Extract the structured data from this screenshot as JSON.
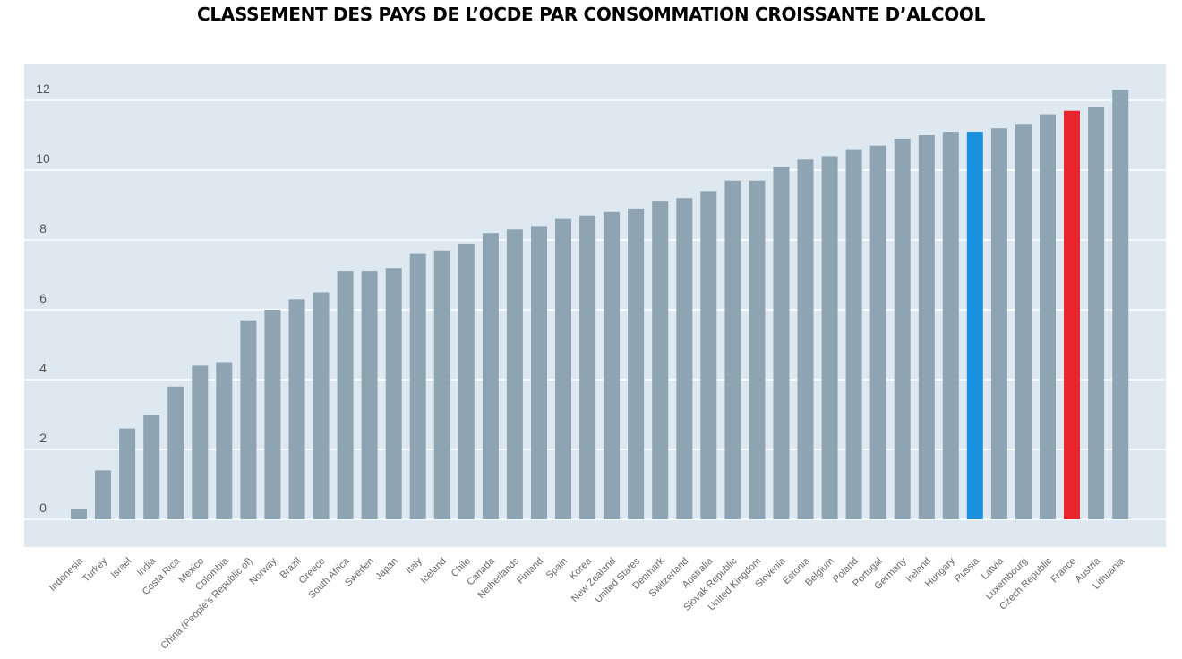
{
  "colors": {
    "plot_background": "#dde8f0",
    "bar_default": "#8fa4b2",
    "highlight_russia": "#1a90e0",
    "highlight_france": "#e8262b",
    "gridline": "#ffffff"
  },
  "chart_data": {
    "type": "bar",
    "title": "CLASSEMENT DES PAYS DE L’OCDE PAR CONSOMMATION CROISSANTE D’ALCOOL",
    "xlabel": "",
    "ylabel": "",
    "ylim": [
      0,
      12.8
    ],
    "yticks": [
      0,
      2,
      4,
      6,
      8,
      10,
      12
    ],
    "grid": true,
    "categories": [
      "Indonesia",
      "Turkey",
      "Israel",
      "India",
      "Costa Rica",
      "Mexico",
      "Colombia",
      "China (People’s Republic of)",
      "Norway",
      "Brazil",
      "Greece",
      "South Africa",
      "Sweden",
      "Japan",
      "Italy",
      "Iceland",
      "Chile",
      "Canada",
      "Netherlands",
      "Finland",
      "Spain",
      "Korea",
      "New Zealand",
      "United States",
      "Denmark",
      "Switzerland",
      "Australia",
      "Slovak Republic",
      "United Kingdom",
      "Slovenia",
      "Estonia",
      "Belgium",
      "Poland",
      "Portugal",
      "Germany",
      "Ireland",
      "Hungary",
      "Russia",
      "Latvia",
      "Luxembourg",
      "Czech Republic",
      "France",
      "Austria",
      "Lithuania"
    ],
    "values": [
      0.3,
      1.4,
      2.6,
      3.0,
      3.8,
      4.4,
      4.5,
      5.7,
      6.0,
      6.3,
      6.5,
      7.1,
      7.1,
      7.2,
      7.6,
      7.7,
      7.9,
      8.2,
      8.3,
      8.4,
      8.6,
      8.7,
      8.8,
      8.9,
      9.1,
      9.2,
      9.4,
      9.7,
      9.7,
      10.1,
      10.3,
      10.4,
      10.6,
      10.7,
      10.9,
      11.0,
      11.1,
      11.1,
      11.2,
      11.3,
      11.6,
      11.7,
      11.8,
      12.3
    ],
    "highlights": {
      "Russia": "#1a90e0",
      "France": "#e8262b"
    }
  }
}
